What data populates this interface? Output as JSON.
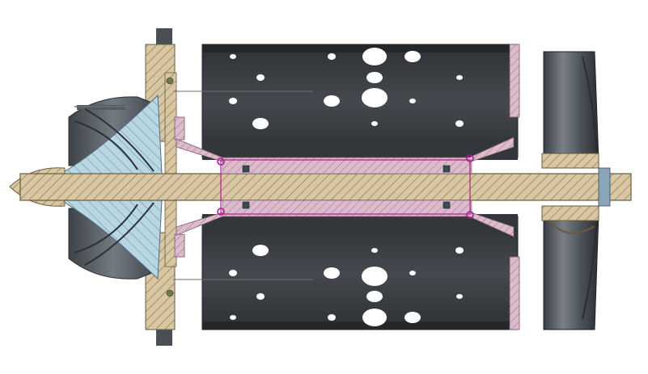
{
  "figure": {
    "kind": "mechanical-cross-section",
    "labels": []
  },
  "colors": {
    "background": "#ffffff",
    "shaft": "#d8c7a2",
    "hatch": "#8c7a55",
    "housing": "#d8c7a2",
    "liner": "#3b3e42",
    "liner_dark": "#2a2c2f",
    "impeller": "#b9d6e3",
    "impeller_blade": "#5a5f66",
    "bearing_pink": "#d9b4c6",
    "bolt_ring": "#b21c8f",
    "turbine_case": "#5b6068",
    "leader": "#6e6e6e"
  },
  "liner_holes": {
    "count_top": 18,
    "count_bottom": 18
  }
}
